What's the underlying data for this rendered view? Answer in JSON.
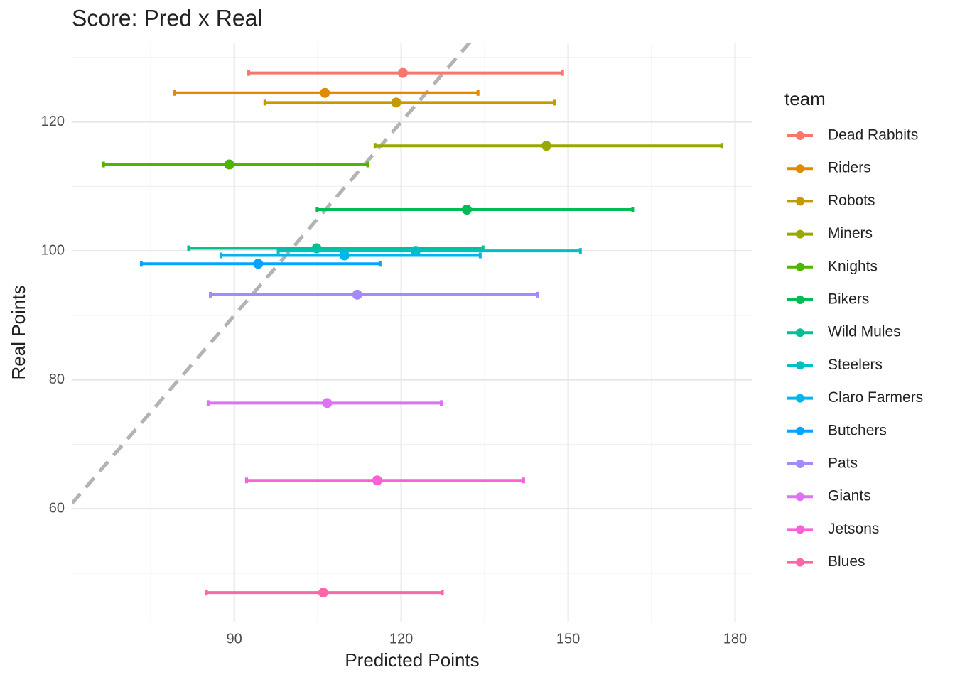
{
  "chart_data": {
    "type": "errorbar_scatter",
    "title": "Score: Pred x Real",
    "x_label": "Predicted Points",
    "y_label": "Real Points",
    "legend_title": "team",
    "legend": "right",
    "xlim": [
      60.8,
      183
    ],
    "ylim": [
      42.5,
      132.3
    ],
    "xticks": [
      90,
      120,
      150,
      180
    ],
    "yticks": [
      60,
      80,
      100,
      120
    ],
    "xminor": [
      75,
      105,
      135,
      165
    ],
    "yminor": [
      50,
      70,
      90,
      110,
      130
    ],
    "grid": true,
    "reference_line": {
      "slope": 1,
      "intercept": 0,
      "color": "#b3b3b3"
    },
    "series": [
      {
        "name": "Dead Rabbits",
        "color": "#F8766D",
        "x": [
          120.3
        ],
        "values": [
          127.6
        ],
        "xmin": [
          92.6
        ],
        "xmax": [
          149.0
        ]
      },
      {
        "name": "Riders",
        "color": "#E38900",
        "x": [
          106.3
        ],
        "values": [
          124.5
        ],
        "xmin": [
          79.3
        ],
        "xmax": [
          133.8
        ]
      },
      {
        "name": "Robots",
        "color": "#C49A00",
        "x": [
          119.1
        ],
        "values": [
          123.0
        ],
        "xmin": [
          95.5
        ],
        "xmax": [
          147.5
        ]
      },
      {
        "name": "Miners",
        "color": "#99A800",
        "x": [
          146.1
        ],
        "values": [
          116.3
        ],
        "xmin": [
          115.3
        ],
        "xmax": [
          177.6
        ]
      },
      {
        "name": "Knights",
        "color": "#53B400",
        "x": [
          89.1
        ],
        "values": [
          113.4
        ],
        "xmin": [
          66.5
        ],
        "xmax": [
          114.0
        ]
      },
      {
        "name": "Bikers",
        "color": "#00BC56",
        "x": [
          131.8
        ],
        "values": [
          106.4
        ],
        "xmin": [
          104.9
        ],
        "xmax": [
          161.6
        ]
      },
      {
        "name": "Wild Mules",
        "color": "#00C094",
        "x": [
          104.8
        ],
        "values": [
          100.4
        ],
        "xmin": [
          81.8
        ],
        "xmax": [
          134.7
        ]
      },
      {
        "name": "Steelers",
        "color": "#00BFC4",
        "x": [
          122.6
        ],
        "values": [
          100.0
        ],
        "xmin": [
          97.9
        ],
        "xmax": [
          152.2
        ]
      },
      {
        "name": "Claro Farmers",
        "color": "#00B6EB",
        "x": [
          109.8
        ],
        "values": [
          99.3
        ],
        "xmin": [
          87.6
        ],
        "xmax": [
          134.2
        ]
      },
      {
        "name": "Butchers",
        "color": "#06A4FF",
        "x": [
          94.3
        ],
        "values": [
          98.0
        ],
        "xmin": [
          73.3
        ],
        "xmax": [
          116.2
        ]
      },
      {
        "name": "Pats",
        "color": "#A58AFF",
        "x": [
          112.1
        ],
        "values": [
          93.2
        ],
        "xmin": [
          85.7
        ],
        "xmax": [
          144.5
        ]
      },
      {
        "name": "Giants",
        "color": "#DF70F8",
        "x": [
          106.7
        ],
        "values": [
          76.4
        ],
        "xmin": [
          85.3
        ],
        "xmax": [
          127.2
        ]
      },
      {
        "name": "Jetsons",
        "color": "#FB61D7",
        "x": [
          115.7
        ],
        "values": [
          64.4
        ],
        "xmin": [
          92.2
        ],
        "xmax": [
          142.0
        ]
      },
      {
        "name": "Blues",
        "color": "#FF66A8",
        "x": [
          106.0
        ],
        "values": [
          47.0
        ],
        "xmin": [
          85.0
        ],
        "xmax": [
          127.4
        ]
      }
    ]
  }
}
